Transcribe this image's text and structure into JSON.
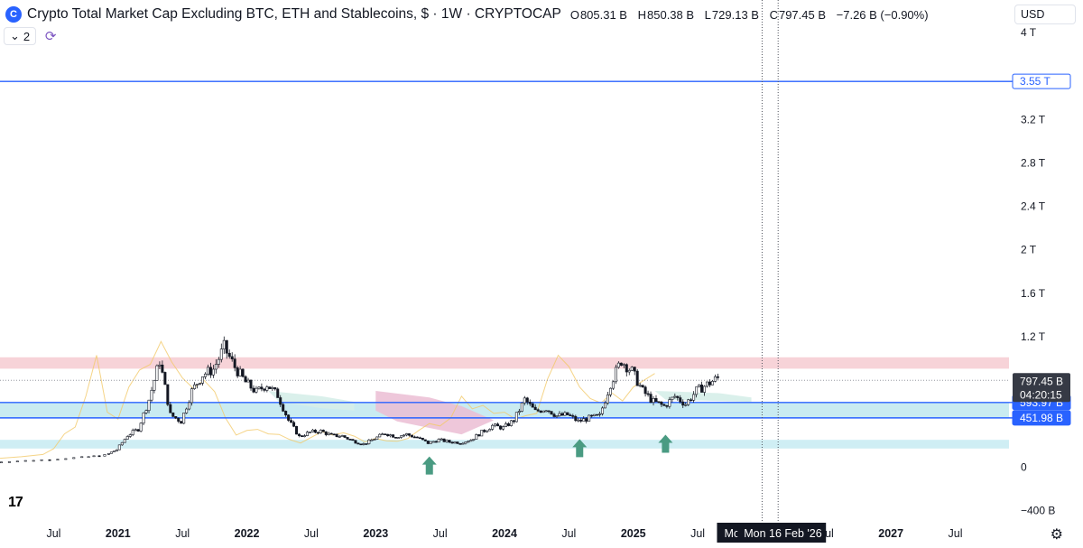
{
  "header": {
    "title": "Crypto Total Market Cap Excluding BTC, ETH and Stablecoins, $ · 1W · CRYPTOCAP",
    "open_label": "O",
    "open": "805.31 B",
    "high_label": "H",
    "high": "850.38 B",
    "low_label": "L",
    "low": "729.13 B",
    "close_label": "C",
    "close": "797.45 B",
    "change": "−7.26 B (−0.90%)"
  },
  "controls": {
    "indicator_count": "2",
    "currency": "USD"
  },
  "icons": {
    "logo": "cryptocap-logo-icon",
    "chevron": "chevron-down-icon",
    "sync": "sync-icon",
    "settings": "gear-icon",
    "tv": "tradingview-logo-icon"
  },
  "colors": {
    "candle": "#131722",
    "hline": "#2962ff",
    "resistance_zone": "#f7d3d8",
    "support_zone": "#c9ebf1",
    "support_zone2": "#cfeef4",
    "cloud_green": "#d6eee9",
    "cloud_pink": "#ebbdd3",
    "line_orange": "#f3c969",
    "arrow": "#4a9b82",
    "price_label_bg": "#2962ff",
    "last_price_bg": "#363a45"
  },
  "chart_data": {
    "type": "candlestick",
    "timeframe": "1W",
    "y_axis": {
      "ticks": [
        "4 T",
        "3.2 T",
        "2.8 T",
        "2.4 T",
        "2 T",
        "1.6 T",
        "1.2 T",
        "0",
        "−400 B"
      ],
      "tick_values_B": [
        4000,
        3200,
        2800,
        2400,
        2000,
        1600,
        1200,
        0,
        -400
      ],
      "range_B": [
        -480,
        4050
      ]
    },
    "x_axis": {
      "labels": [
        "Jul",
        "2021",
        "Jul",
        "2022",
        "Jul",
        "2023",
        "Jul",
        "2024",
        "Jul",
        "2025",
        "Jul",
        "Jul",
        "2027",
        "Jul"
      ],
      "label_dates": [
        "2020-07",
        "2021-01",
        "2021-07",
        "2022-01",
        "2022-07",
        "2023-01",
        "2023-07",
        "2024-01",
        "2024-07",
        "2025-01",
        "2025-07",
        "2026-07",
        "2027-01",
        "2027-07"
      ],
      "range": [
        "2020-02",
        "2027-12"
      ]
    },
    "horizontal_lines_B": [
      3550,
      593.97,
      451.98
    ],
    "price_labels": [
      {
        "text": "3.55 T",
        "value_B": 3550
      },
      {
        "text": "593.97 B",
        "value_B": 593.97
      },
      {
        "text": "451.98 B",
        "value_B": 451.98
      }
    ],
    "last_price": {
      "text": "797.45 B",
      "countdown": "04:20:15",
      "value_B": 797.45
    },
    "zones_B": [
      {
        "name": "resistance",
        "from": 905,
        "to": 1010
      },
      {
        "name": "support",
        "from": 452,
        "to": 594
      },
      {
        "name": "lower-support",
        "from": 170,
        "to": 250
      }
    ],
    "cursor_labels": [
      "Mon 0",
      "Mon 16 Feb '26"
    ],
    "cursor_dates": [
      "2026-01",
      "2026-02-16"
    ],
    "arrows": [
      {
        "date": "2023-06",
        "value_B": 130
      },
      {
        "date": "2024-08",
        "value_B": 290
      },
      {
        "date": "2025-04",
        "value_B": 330
      }
    ],
    "series_close_B": [
      [
        "2020-01",
        40
      ],
      [
        "2020-04",
        55
      ],
      [
        "2020-07",
        70
      ],
      [
        "2020-10",
        90
      ],
      [
        "2020-12",
        110
      ],
      [
        "2021-01",
        160
      ],
      [
        "2021-02",
        290
      ],
      [
        "2021-03",
        350
      ],
      [
        "2021-04",
        620
      ],
      [
        "2021-05",
        980
      ],
      [
        "2021-06",
        480
      ],
      [
        "2021-07",
        420
      ],
      [
        "2021-08",
        700
      ],
      [
        "2021-09",
        850
      ],
      [
        "2021-10",
        900
      ],
      [
        "2021-11",
        1100
      ],
      [
        "2021-12",
        920
      ],
      [
        "2022-01",
        780
      ],
      [
        "2022-02",
        690
      ],
      [
        "2022-03",
        760
      ],
      [
        "2022-04",
        660
      ],
      [
        "2022-05",
        430
      ],
      [
        "2022-06",
        280
      ],
      [
        "2022-07",
        320
      ],
      [
        "2022-08",
        330
      ],
      [
        "2022-09",
        290
      ],
      [
        "2022-10",
        285
      ],
      [
        "2022-11",
        240
      ],
      [
        "2022-12",
        210
      ],
      [
        "2023-01",
        260
      ],
      [
        "2023-02",
        310
      ],
      [
        "2023-03",
        280
      ],
      [
        "2023-04",
        300
      ],
      [
        "2023-05",
        270
      ],
      [
        "2023-06",
        220
      ],
      [
        "2023-07",
        250
      ],
      [
        "2023-08",
        230
      ],
      [
        "2023-09",
        225
      ],
      [
        "2023-10",
        250
      ],
      [
        "2023-11",
        320
      ],
      [
        "2023-12",
        380
      ],
      [
        "2024-01",
        360
      ],
      [
        "2024-02",
        430
      ],
      [
        "2024-03",
        620
      ],
      [
        "2024-04",
        510
      ],
      [
        "2024-05",
        540
      ],
      [
        "2024-06",
        470
      ],
      [
        "2024-07",
        480
      ],
      [
        "2024-08",
        420
      ],
      [
        "2024-09",
        450
      ],
      [
        "2024-10",
        470
      ],
      [
        "2024-11",
        770
      ],
      [
        "2024-12",
        980
      ],
      [
        "2025-01",
        880
      ],
      [
        "2025-02",
        700
      ],
      [
        "2025-03",
        600
      ],
      [
        "2025-04",
        560
      ],
      [
        "2025-05",
        650
      ],
      [
        "2025-06",
        580
      ],
      [
        "2025-07",
        700
      ],
      [
        "2025-08",
        760
      ],
      [
        "2025-09",
        820
      ]
    ]
  }
}
